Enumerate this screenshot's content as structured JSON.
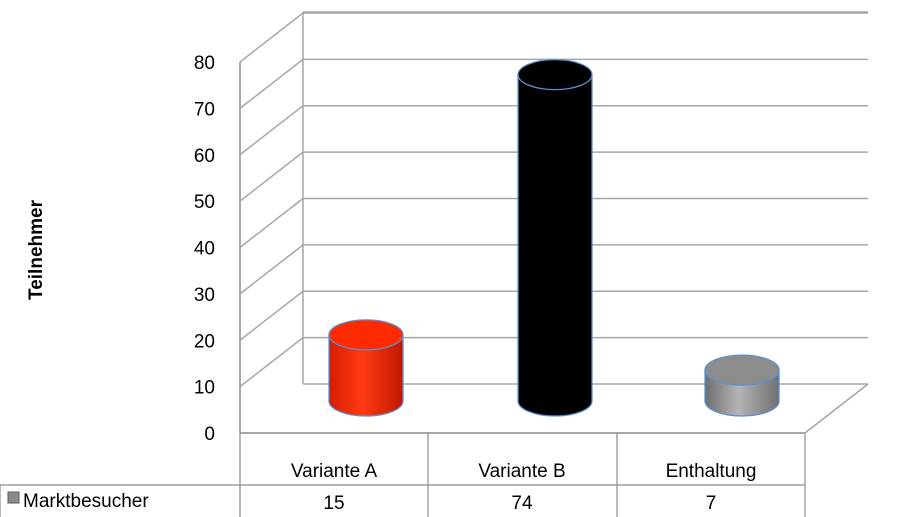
{
  "chart_data": {
    "type": "bar",
    "style": "3d-cylinder",
    "categories": [
      "Variante A",
      "Variante B",
      "Enthaltung"
    ],
    "series": [
      {
        "name": "Marktbesucher",
        "values": [
          15,
          74,
          7
        ]
      }
    ],
    "bar_colors": [
      "#ff2a00",
      "#000000",
      "#8c8c8c"
    ],
    "title": "",
    "xlabel": "",
    "ylabel": "Teilnehmer",
    "ylim": [
      0,
      80
    ],
    "yticks": [
      "0",
      "10",
      "20",
      "30",
      "40",
      "50",
      "60",
      "70",
      "80"
    ],
    "grid": true,
    "legend": "data-table",
    "data_table": {
      "row_label": "Marktbesucher",
      "values": [
        "15",
        "74",
        "7"
      ]
    }
  }
}
